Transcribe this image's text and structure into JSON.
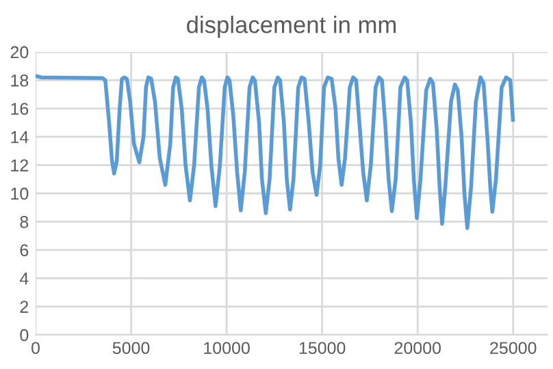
{
  "chart_data": {
    "type": "line",
    "title": "displacement in mm",
    "x": [
      0,
      300,
      3500,
      3650,
      3850,
      4000,
      4110,
      4250,
      4400,
      4520,
      4640,
      4780,
      4950,
      5150,
      5430,
      5650,
      5780,
      5900,
      6050,
      6250,
      6500,
      6790,
      7050,
      7200,
      7340,
      7450,
      7650,
      7850,
      8080,
      8300,
      8550,
      8700,
      8820,
      9000,
      9200,
      9420,
      9650,
      9900,
      10040,
      10150,
      10350,
      10550,
      10740,
      10950,
      11200,
      11360,
      11480,
      11700,
      11850,
      12050,
      12250,
      12500,
      12680,
      12800,
      13000,
      13150,
      13320,
      13500,
      13750,
      13920,
      14080,
      14300,
      14500,
      14710,
      14900,
      15100,
      15300,
      15500,
      15700,
      15850,
      16020,
      16200,
      16450,
      16620,
      16780,
      16950,
      17150,
      17340,
      17550,
      17800,
      17980,
      18130,
      18300,
      18480,
      18650,
      18850,
      19100,
      19320,
      19450,
      19650,
      19800,
      19960,
      20150,
      20450,
      20660,
      20800,
      21000,
      21150,
      21280,
      21450,
      21750,
      21950,
      22100,
      22300,
      22450,
      22600,
      22800,
      23050,
      23290,
      23450,
      23650,
      23800,
      23910,
      24100,
      24400,
      24630,
      24850,
      24990
    ],
    "series": [
      {
        "color": "#5b9bd5",
        "values": [
          18.3,
          18.2,
          18.15,
          18.0,
          15.0,
          12.3,
          11.4,
          12.3,
          16.0,
          18.1,
          18.2,
          18.1,
          16.5,
          13.5,
          12.2,
          14.0,
          17.5,
          18.2,
          18.1,
          16.5,
          12.5,
          10.6,
          13.5,
          17.5,
          18.2,
          18.1,
          16,
          12,
          9.5,
          12,
          17.5,
          18.2,
          18.0,
          16,
          12,
          9.1,
          12,
          17.5,
          18.2,
          18.0,
          15.5,
          11.5,
          8.8,
          11.5,
          17.5,
          18.2,
          18,
          15,
          11,
          8.6,
          11,
          17.5,
          18.2,
          18.0,
          15,
          11,
          8.85,
          11,
          17.5,
          18.2,
          18.1,
          15,
          11.5,
          9.9,
          12,
          17.5,
          18.2,
          18.1,
          16,
          12.5,
          10.6,
          12.5,
          17.5,
          18.2,
          18.0,
          15,
          11.5,
          9.5,
          12,
          17.5,
          18.2,
          18.0,
          15,
          11,
          8.75,
          11,
          17.5,
          18.2,
          18.0,
          15,
          11,
          8.25,
          11,
          17.3,
          18.1,
          17.8,
          14.5,
          10.5,
          7.85,
          10.5,
          16.5,
          17.7,
          17.3,
          14,
          10,
          7.55,
          10.5,
          16.5,
          18.2,
          17.8,
          14,
          10.5,
          8.7,
          11,
          17.5,
          18.2,
          18.0,
          15.2
        ]
      }
    ],
    "xlim": [
      0,
      26800
    ],
    "xticks": [
      0,
      5000,
      10000,
      15000,
      20000,
      25000
    ],
    "ylim": [
      0,
      20
    ],
    "yticks": [
      0,
      2,
      4,
      6,
      8,
      10,
      12,
      14,
      16,
      18,
      20
    ],
    "grid": true,
    "legend": false,
    "marker": "none",
    "line_style": "solid"
  }
}
